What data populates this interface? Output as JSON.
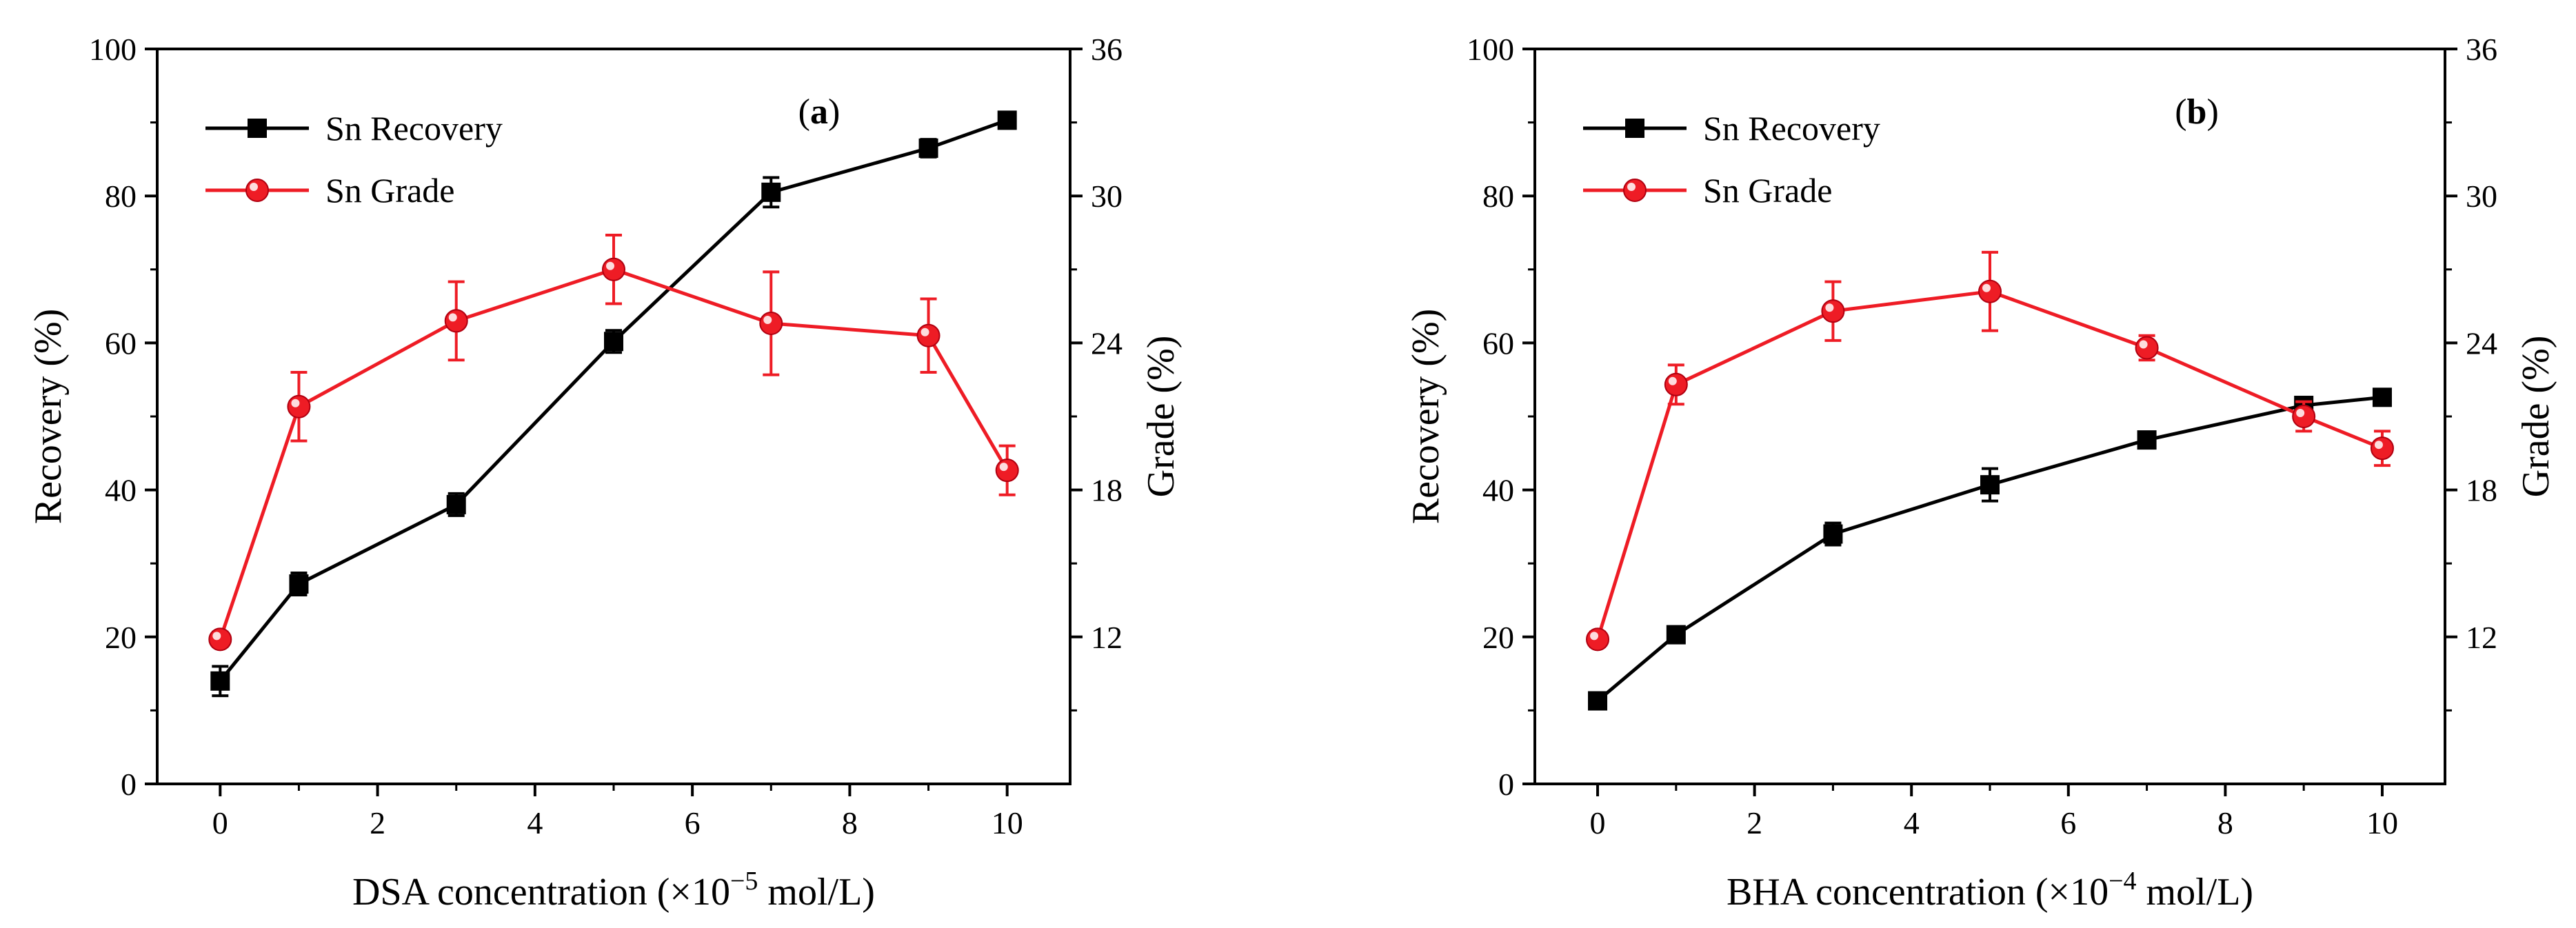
{
  "chart_data": [
    {
      "type": "line",
      "panel_label": "(a)",
      "panel_letter": "a",
      "x": [
        0,
        1,
        3,
        5,
        7,
        9,
        10
      ],
      "xlim": [
        -0.8,
        10.8
      ],
      "xticks": [
        0,
        2,
        4,
        6,
        8,
        10
      ],
      "xlabel": {
        "prefix": "DSA  concentration (",
        "times": "×",
        "base": "10",
        "exponent": "−5",
        "suffix": " mol/L)"
      },
      "ylabel_left": "Recovery (%)",
      "ylim_left": [
        0,
        100
      ],
      "yticks_left": [
        0,
        20,
        40,
        60,
        80,
        100
      ],
      "ylabel_right": "Grade (%)",
      "ylim_right": [
        6,
        36
      ],
      "yticks_right": [
        12,
        18,
        24,
        30,
        36
      ],
      "legend_position": "top-left",
      "series": [
        {
          "name": "Sn Recovery",
          "axis": "left",
          "color": "#000000",
          "marker": "square",
          "values": [
            14.0,
            27.2,
            38.0,
            60.2,
            80.5,
            86.5,
            90.3
          ],
          "errors": [
            2.0,
            1.5,
            1.5,
            1.5,
            2.0,
            1.2,
            0.8
          ]
        },
        {
          "name": "Sn Grade",
          "axis": "right",
          "color": "#ee1c25",
          "marker": "circle",
          "values": [
            11.9,
            21.4,
            24.9,
            27.0,
            24.8,
            24.3,
            18.8
          ],
          "errors": [
            0.3,
            1.4,
            1.6,
            1.4,
            2.1,
            1.5,
            1.0
          ]
        }
      ]
    },
    {
      "type": "line",
      "panel_label": "(b)",
      "panel_letter": "b",
      "x": [
        0,
        1,
        3,
        5,
        7,
        9,
        10
      ],
      "xlim": [
        -0.8,
        10.8
      ],
      "xticks": [
        0,
        2,
        4,
        6,
        8,
        10
      ],
      "xlabel": {
        "prefix": "BHA  concentration (",
        "times": "×",
        "base": "10",
        "exponent": "−4",
        "suffix": " mol/L)"
      },
      "ylabel_left": "Recovery (%)",
      "ylim_left": [
        0,
        100
      ],
      "yticks_left": [
        0,
        20,
        40,
        60,
        80,
        100
      ],
      "ylabel_right": "Grade (%)",
      "ylim_right": [
        6,
        36
      ],
      "yticks_right": [
        12,
        18,
        24,
        30,
        36
      ],
      "legend_position": "top-left",
      "series": [
        {
          "name": "Sn Recovery",
          "axis": "left",
          "color": "#000000",
          "marker": "square",
          "values": [
            11.3,
            20.3,
            34.0,
            40.7,
            46.8,
            51.5,
            52.6
          ],
          "errors": [
            0.5,
            0.8,
            1.5,
            2.2,
            0.8,
            1.0,
            1.0
          ]
        },
        {
          "name": "Sn Grade",
          "axis": "right",
          "color": "#ee1c25",
          "marker": "circle",
          "values": [
            11.9,
            22.3,
            25.3,
            26.1,
            23.8,
            21.0,
            19.7
          ],
          "errors": [
            0.3,
            0.8,
            1.2,
            1.6,
            0.5,
            0.6,
            0.7
          ]
        }
      ]
    }
  ]
}
